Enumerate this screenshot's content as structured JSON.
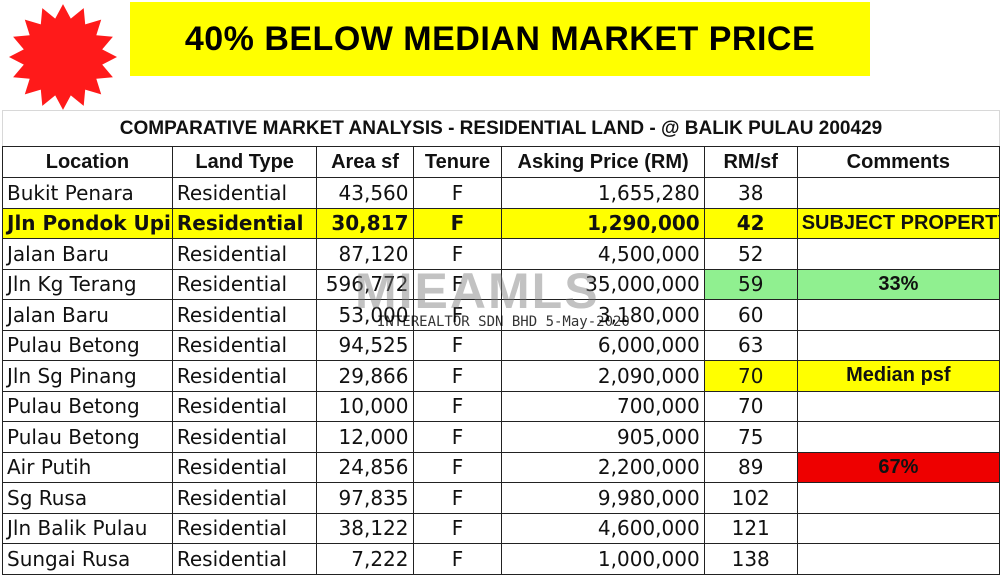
{
  "banner": {
    "text": "40% BELOW MEDIAN MARKET PRICE"
  },
  "sheet": {
    "title": "COMPARATIVE MARKET ANALYSIS - RESIDENTIAL LAND - @ BALIK PULAU 200429",
    "headers": [
      "Location",
      "Land Type",
      "Area sf",
      "Tenure",
      "Asking Price (RM)",
      "RM/sf",
      "Comments"
    ],
    "rows": [
      {
        "location": "Bukit Penara",
        "type": "Residential",
        "area": "43,560",
        "tenure": "F",
        "price": "1,655,280",
        "psf": "38",
        "comment": ""
      },
      {
        "location": "Jln Pondok Upih",
        "type": "Residential",
        "area": "30,817",
        "tenure": "F",
        "price": "1,290,000",
        "psf": "42",
        "comment": "SUBJECT PROPERTY"
      },
      {
        "location": "Jalan Baru",
        "type": "Residential",
        "area": "87,120",
        "tenure": "F",
        "price": "4,500,000",
        "psf": "52",
        "comment": ""
      },
      {
        "location": "Jln Kg Terang",
        "type": "Residential",
        "area": "596,772",
        "tenure": "F",
        "price": "35,000,000",
        "psf": "59",
        "comment": "33%"
      },
      {
        "location": "Jalan Baru",
        "type": "Residential",
        "area": "53,000",
        "tenure": "F",
        "price": "3,180,000",
        "psf": "60",
        "comment": ""
      },
      {
        "location": "Pulau Betong",
        "type": "Residential",
        "area": "94,525",
        "tenure": "F",
        "price": "6,000,000",
        "psf": "63",
        "comment": ""
      },
      {
        "location": "Jln Sg Pinang",
        "type": "Residential",
        "area": "29,866",
        "tenure": "F",
        "price": "2,090,000",
        "psf": "70",
        "comment": "Median psf"
      },
      {
        "location": "Pulau Betong",
        "type": "Residential",
        "area": "10,000",
        "tenure": "F",
        "price": "700,000",
        "psf": "70",
        "comment": ""
      },
      {
        "location": "Pulau Betong",
        "type": "Residential",
        "area": "12,000",
        "tenure": "F",
        "price": "905,000",
        "psf": "75",
        "comment": ""
      },
      {
        "location": "Air Putih",
        "type": "Residential",
        "area": "24,856",
        "tenure": "F",
        "price": "2,200,000",
        "psf": "89",
        "comment": "67%"
      },
      {
        "location": "Sg Rusa",
        "type": "Residential",
        "area": "97,835",
        "tenure": "F",
        "price": "9,980,000",
        "psf": "102",
        "comment": ""
      },
      {
        "location": "Jln Balik Pulau",
        "type": "Residential",
        "area": "38,122",
        "tenure": "F",
        "price": "4,600,000",
        "psf": "121",
        "comment": ""
      },
      {
        "location": "Sungai Rusa",
        "type": "Residential",
        "area": "7,222",
        "tenure": "F",
        "price": "1,000,000",
        "psf": "138",
        "comment": ""
      }
    ]
  },
  "watermark": {
    "logo": "MIEAMLS",
    "text": "INTEREALTOR SDN BHD 5-May-2020"
  },
  "colors": {
    "banner": "#ffff00",
    "subject": "#ffff00",
    "green": "#90f090",
    "red": "#ee0000",
    "starburst": "#ff1a1a"
  }
}
